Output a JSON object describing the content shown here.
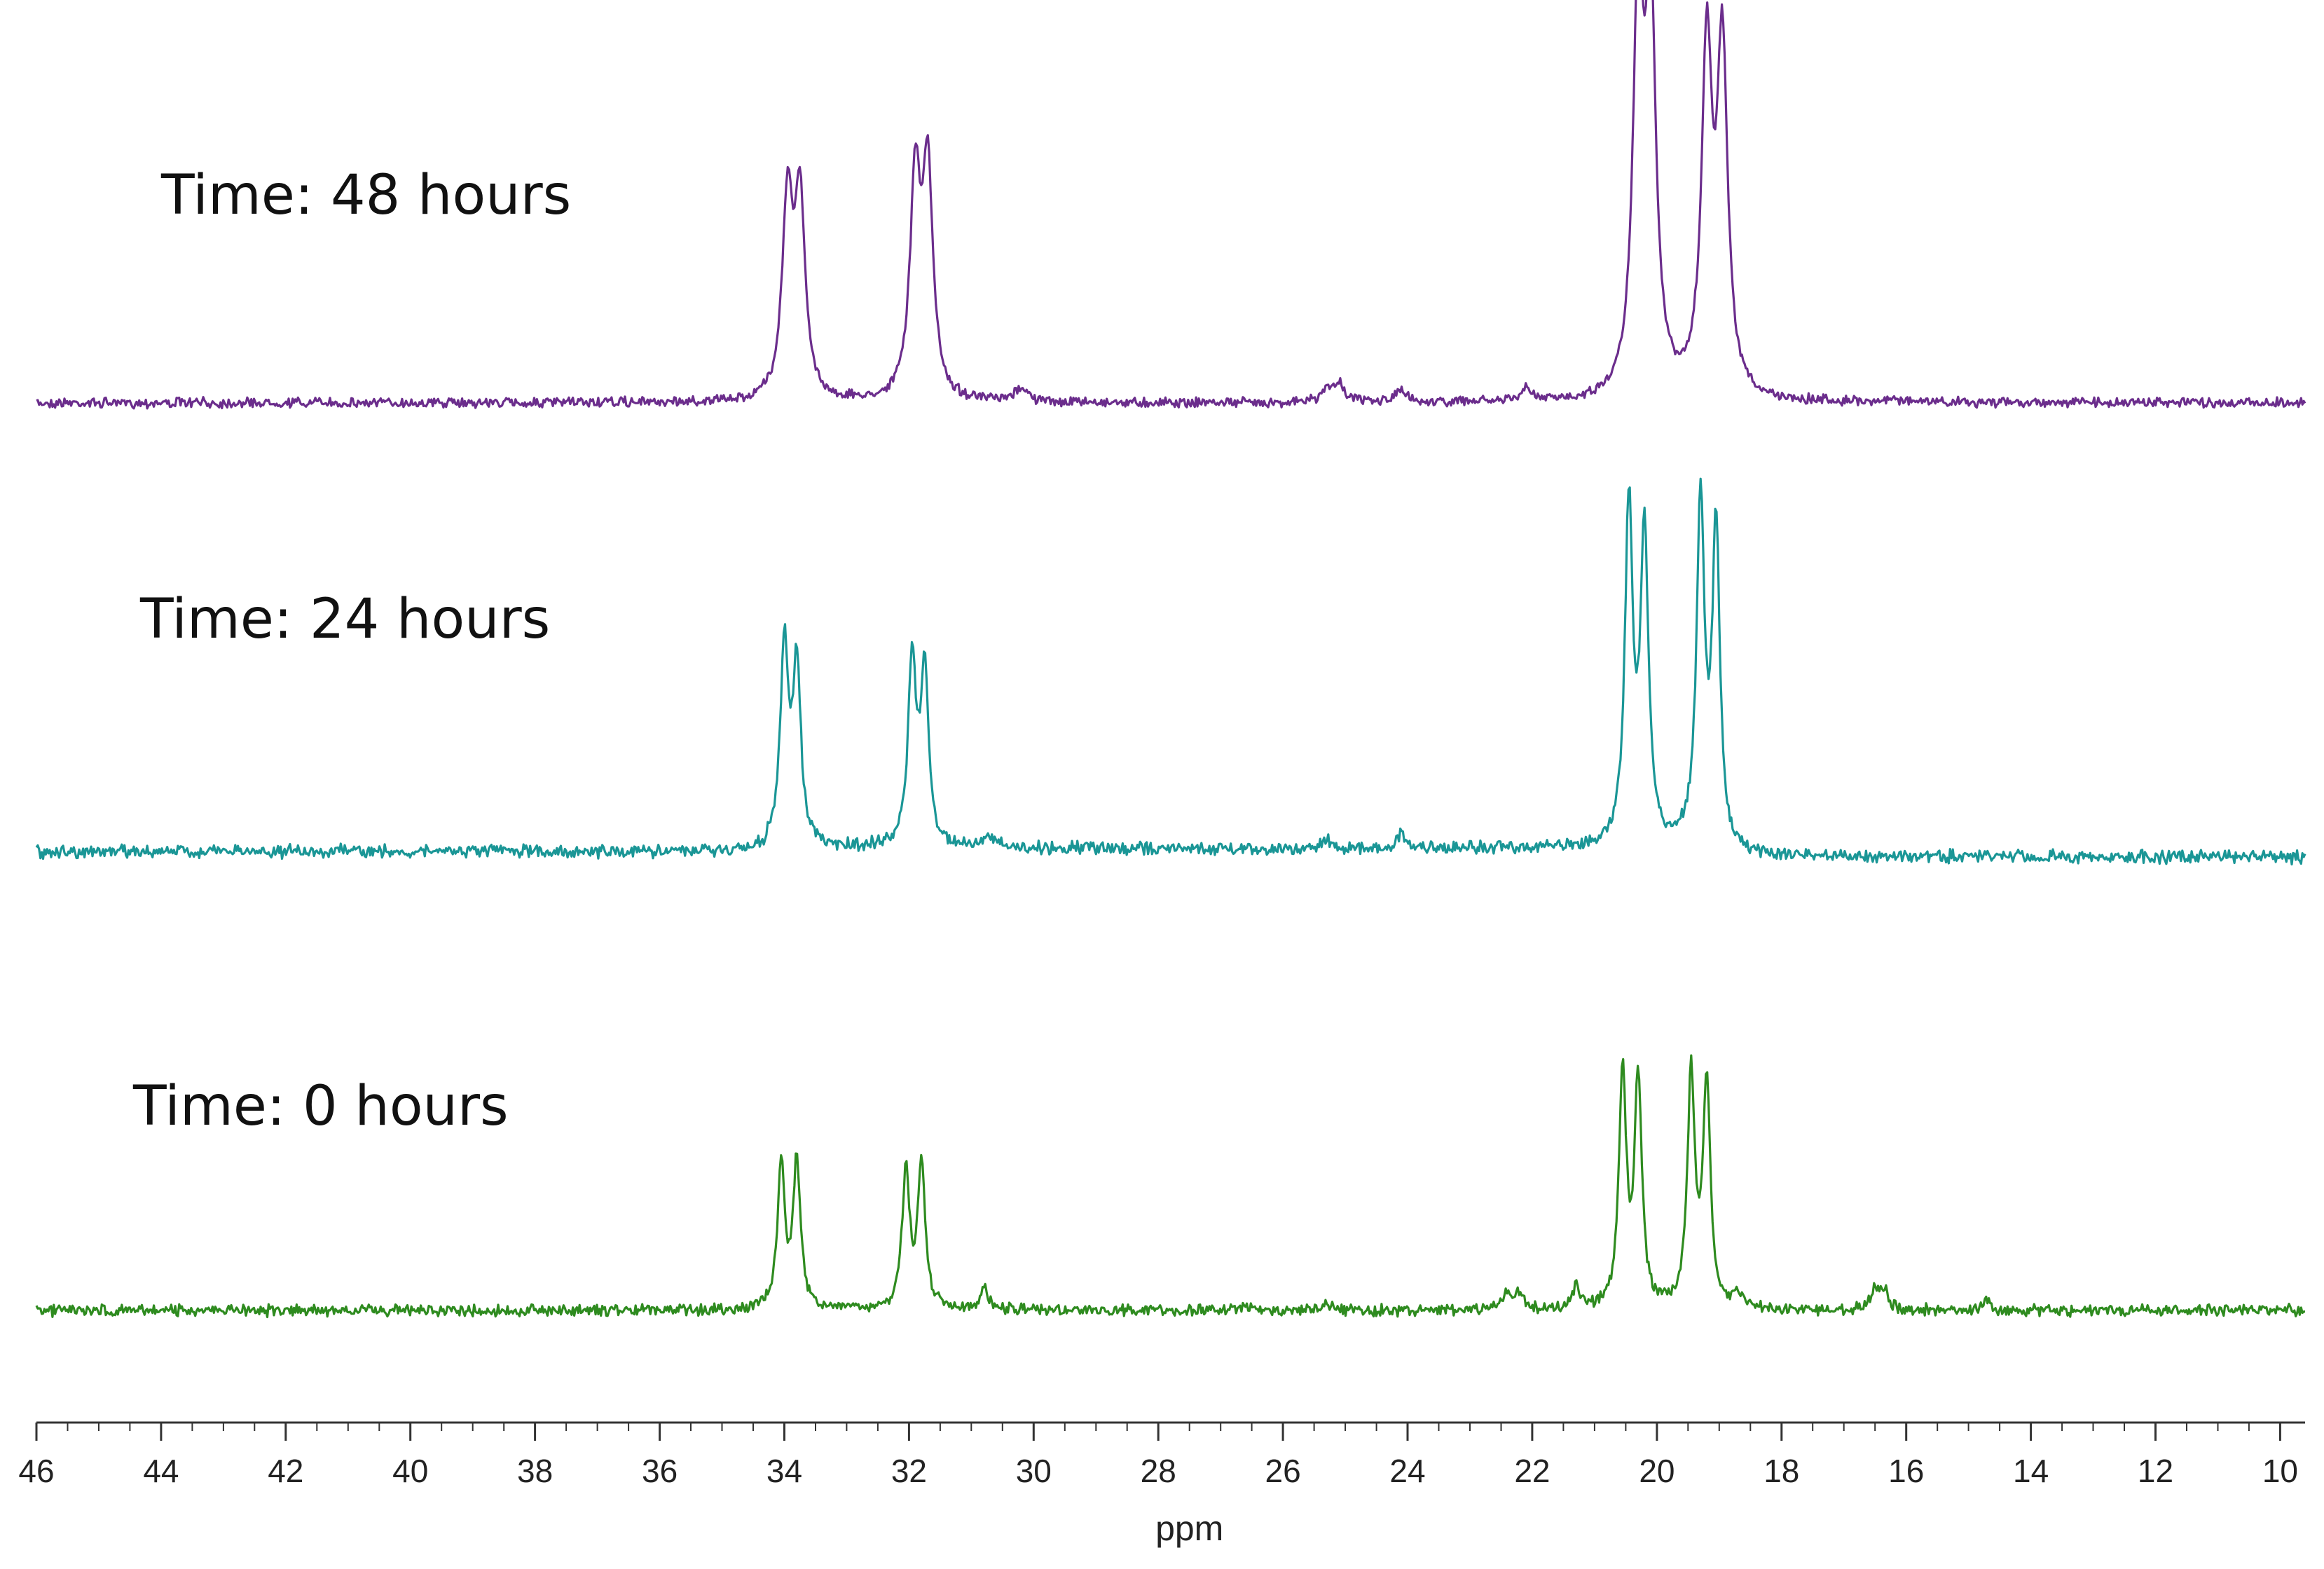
{
  "chart_data": {
    "type": "line",
    "title": "",
    "xlabel": "ppm",
    "ylabel": "",
    "xlim": [
      46,
      9.6
    ],
    "x_reversed": true,
    "grid": false,
    "legend": "none",
    "x_ticks": [
      46,
      44,
      42,
      40,
      38,
      36,
      34,
      32,
      30,
      28,
      26,
      24,
      22,
      20,
      18,
      16,
      14,
      12,
      10
    ],
    "series": [
      {
        "name": "Time: 48 hours",
        "color": "#6b2d8c",
        "peaks": [
          {
            "ppm": 33.95,
            "height": 0.5
          },
          {
            "ppm": 33.75,
            "height": 0.5
          },
          {
            "ppm": 31.9,
            "height": 0.55
          },
          {
            "ppm": 31.7,
            "height": 0.57
          },
          {
            "ppm": 30.2,
            "height": 0.04
          },
          {
            "ppm": 25.3,
            "height": 0.03
          },
          {
            "ppm": 25.1,
            "height": 0.05
          },
          {
            "ppm": 24.1,
            "height": 0.03
          },
          {
            "ppm": 22.1,
            "height": 0.03
          },
          {
            "ppm": 20.3,
            "height": 1.0
          },
          {
            "ppm": 20.1,
            "height": 0.98
          },
          {
            "ppm": 19.2,
            "height": 0.88
          },
          {
            "ppm": 18.95,
            "height": 0.88
          },
          {
            "ppm": 16.2,
            "height": 0.01
          }
        ]
      },
      {
        "name": "Time: 24 hours",
        "color": "#1a9696",
        "peaks": [
          {
            "ppm": 34.0,
            "height": 0.57
          },
          {
            "ppm": 33.8,
            "height": 0.52
          },
          {
            "ppm": 31.95,
            "height": 0.53
          },
          {
            "ppm": 31.75,
            "height": 0.5
          },
          {
            "ppm": 30.7,
            "height": 0.04
          },
          {
            "ppm": 25.3,
            "height": 0.03
          },
          {
            "ppm": 24.1,
            "height": 0.04
          },
          {
            "ppm": 20.45,
            "height": 0.96
          },
          {
            "ppm": 20.2,
            "height": 0.88
          },
          {
            "ppm": 19.3,
            "height": 0.96
          },
          {
            "ppm": 19.05,
            "height": 0.88
          }
        ]
      },
      {
        "name": "Time: 0 hours",
        "color": "#2e8b1f",
        "peaks": [
          {
            "ppm": 34.05,
            "height": 0.47
          },
          {
            "ppm": 33.8,
            "height": 0.48
          },
          {
            "ppm": 32.05,
            "height": 0.45
          },
          {
            "ppm": 31.8,
            "height": 0.48
          },
          {
            "ppm": 30.8,
            "height": 0.07
          },
          {
            "ppm": 26.6,
            "height": 0.02
          },
          {
            "ppm": 25.3,
            "height": 0.03
          },
          {
            "ppm": 22.4,
            "height": 0.06
          },
          {
            "ppm": 22.2,
            "height": 0.06
          },
          {
            "ppm": 21.3,
            "height": 0.07
          },
          {
            "ppm": 20.55,
            "height": 0.76
          },
          {
            "ppm": 20.3,
            "height": 0.74
          },
          {
            "ppm": 19.45,
            "height": 0.76
          },
          {
            "ppm": 19.2,
            "height": 0.73
          },
          {
            "ppm": 18.7,
            "height": 0.05
          },
          {
            "ppm": 16.5,
            "height": 0.07
          },
          {
            "ppm": 16.35,
            "height": 0.06
          },
          {
            "ppm": 14.7,
            "height": 0.03
          }
        ]
      }
    ]
  }
}
